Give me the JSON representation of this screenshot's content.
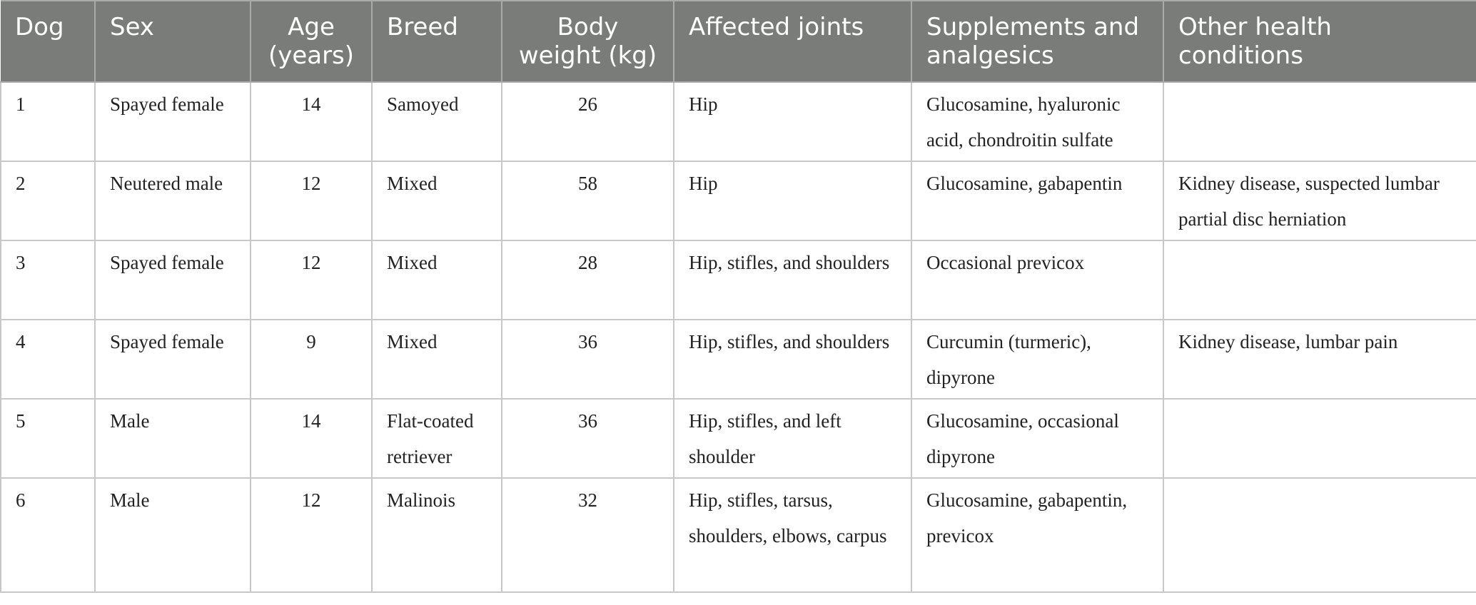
{
  "table": {
    "headers": [
      {
        "line1": "Dog",
        "line2": ""
      },
      {
        "line1": "Sex",
        "line2": ""
      },
      {
        "line1": "Age",
        "line2": "(years)"
      },
      {
        "line1": "Breed",
        "line2": ""
      },
      {
        "line1": "Body",
        "line2": "weight (kg)"
      },
      {
        "line1": "Affected joints",
        "line2": ""
      },
      {
        "line1": "Supplements and",
        "line2": "analgesics"
      },
      {
        "line1": "Other health",
        "line2": "conditions"
      }
    ],
    "rows": [
      {
        "dog": "1",
        "sex": "Spayed female",
        "age": "14",
        "breed": "Samoyed",
        "weight": "26",
        "joints": "Hip",
        "supplements": "Glucosamine, hyaluronic acid, chondroitin sulfate",
        "other": ""
      },
      {
        "dog": "2",
        "sex": "Neutered male",
        "age": "12",
        "breed": "Mixed",
        "weight": "58",
        "joints": "Hip",
        "supplements": "Glucosamine, gabapentin",
        "other": "Kidney disease, suspected lumbar partial disc herniation"
      },
      {
        "dog": "3",
        "sex": "Spayed female",
        "age": "12",
        "breed": "Mixed",
        "weight": "28",
        "joints": "Hip, stifles, and shoulders",
        "supplements": "Occasional previcox",
        "other": ""
      },
      {
        "dog": "4",
        "sex": "Spayed female",
        "age": "9",
        "breed": "Mixed",
        "weight": "36",
        "joints": "Hip, stifles, and shoulders",
        "supplements": "Curcumin (turmeric), dipyrone",
        "other": "Kidney disease, lumbar pain"
      },
      {
        "dog": "5",
        "sex": "Male",
        "age": "14",
        "breed": "Flat-coated retriever",
        "weight": "36",
        "joints": "Hip, stifles, and left shoulder",
        "supplements": "Glucosamine, occasional dipyrone",
        "other": ""
      },
      {
        "dog": "6",
        "sex": "Male",
        "age": "12",
        "breed": "Malinois",
        "weight": "32",
        "joints": "Hip, stifles, tarsus, shoulders, elbows, carpus",
        "supplements": "Glucosamine, gabapentin, previcox",
        "other": ""
      }
    ]
  }
}
